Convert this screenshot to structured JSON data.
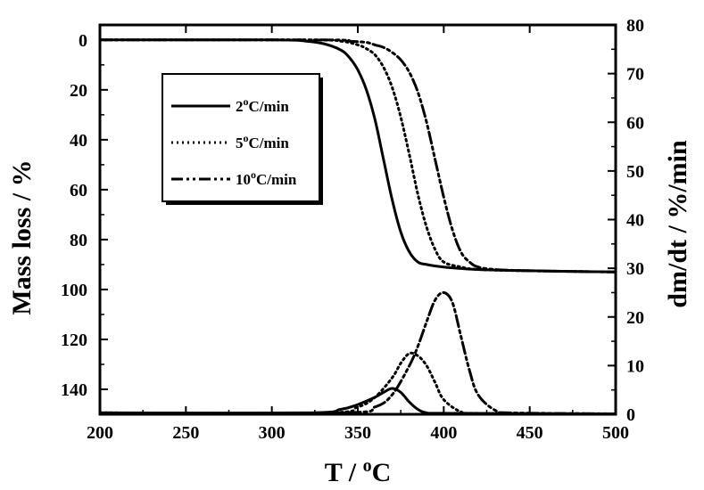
{
  "chart_data": {
    "type": "line",
    "x": {
      "label_text": "T / ",
      "label_sup": "o",
      "label_unit": "C",
      "lim": [
        200,
        500
      ],
      "ticks": [
        200,
        250,
        300,
        350,
        400,
        450,
        500
      ]
    },
    "y_left": {
      "label": "Mass loss / %",
      "lim": [
        150,
        -6
      ],
      "ticks": [
        0,
        20,
        40,
        60,
        80,
        100,
        120,
        140
      ],
      "inverted": true
    },
    "y_right": {
      "label": "dm/dt / %/min",
      "lim": [
        0,
        80
      ],
      "ticks": [
        0,
        10,
        20,
        30,
        40,
        50,
        60,
        70,
        80
      ]
    },
    "legend_position": "upper-left",
    "grid": false,
    "series": [
      {
        "name_value": "2",
        "name_sup": "o",
        "name_unit": "C/min",
        "dash": "solid",
        "color": "#000000",
        "mass_loss": {
          "x": [
            200,
            300,
            320,
            330,
            340,
            345,
            350,
            355,
            360,
            365,
            370,
            375,
            380,
            385,
            390,
            400,
            420,
            450,
            500
          ],
          "y": [
            0,
            0,
            0.5,
            1.5,
            4,
            7,
            12,
            20,
            32,
            48,
            64,
            77,
            85,
            89,
            90,
            91,
            92,
            92.5,
            93
          ]
        },
        "rate": {
          "x": [
            200,
            320,
            340,
            350,
            360,
            365,
            370,
            375,
            380,
            385,
            390,
            400,
            500
          ],
          "y": [
            0.3,
            0.3,
            1,
            2,
            3.5,
            4.5,
            5.3,
            4.5,
            2.5,
            1,
            0.3,
            0.2,
            0.1
          ]
        }
      },
      {
        "name_value": "5",
        "name_sup": "o",
        "name_unit": "C/min",
        "dash": "dotted",
        "color": "#000000",
        "mass_loss": {
          "x": [
            200,
            320,
            340,
            350,
            355,
            360,
            365,
            370,
            375,
            380,
            385,
            390,
            395,
            400,
            410,
            420,
            450,
            500
          ],
          "y": [
            0,
            0,
            0.5,
            2,
            3.5,
            6,
            11,
            19,
            31,
            46,
            62,
            75,
            84,
            89,
            91,
            92,
            92.5,
            93
          ]
        },
        "rate": {
          "x": [
            200,
            330,
            350,
            360,
            370,
            375,
            380,
            385,
            390,
            395,
            400,
            410,
            420,
            500
          ],
          "y": [
            0.3,
            0.3,
            1.5,
            3.5,
            7.5,
            10.5,
            12.5,
            12,
            10,
            6.5,
            3,
            0.5,
            0.2,
            0.1
          ]
        }
      },
      {
        "name_value": "10",
        "name_sup": "o",
        "name_unit": "C/min",
        "dash": "dash-dot-dot",
        "color": "#000000",
        "mass_loss": {
          "x": [
            200,
            330,
            345,
            355,
            360,
            365,
            370,
            375,
            380,
            385,
            390,
            395,
            400,
            405,
            410,
            415,
            420,
            430,
            450,
            500
          ],
          "y": [
            0,
            0,
            0.5,
            1,
            2,
            3,
            5,
            8,
            13,
            21,
            33,
            48,
            63,
            76,
            85,
            89,
            91,
            92,
            92.5,
            93
          ]
        },
        "rate": {
          "x": [
            200,
            340,
            360,
            370,
            380,
            385,
            390,
            395,
            400,
            405,
            410,
            415,
            420,
            430,
            440,
            500
          ],
          "y": [
            0.3,
            0.3,
            1.5,
            4,
            10,
            14,
            19,
            23.5,
            25,
            23,
            16,
            9,
            4,
            0.8,
            0.3,
            0.1
          ]
        }
      }
    ]
  }
}
